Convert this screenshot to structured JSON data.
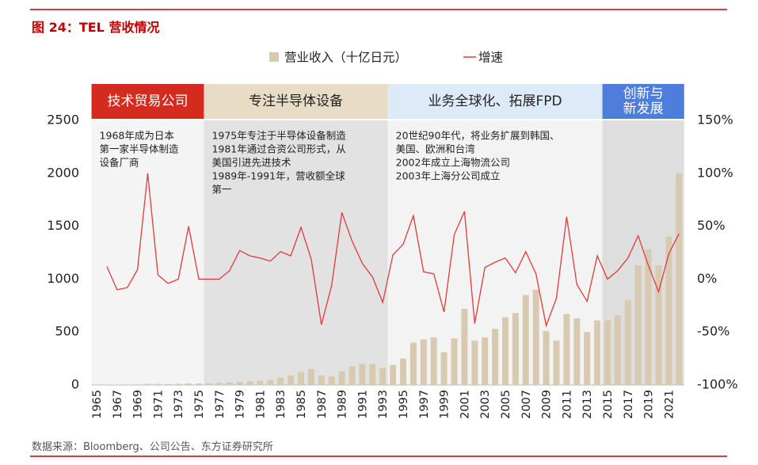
{
  "title": "图 24：TEL 营收情况",
  "source": "数据来源：Bloomberg、公司公告、东方证券研究所",
  "chart_data": {
    "type": "combo",
    "categories": [
      "1965",
      null,
      "1967",
      null,
      "1969",
      null,
      "1971",
      null,
      "1973",
      null,
      "1975",
      null,
      "1977",
      null,
      "1979",
      null,
      "1981",
      null,
      "1983",
      null,
      "1985",
      null,
      "1987",
      null,
      "1989",
      null,
      "1991",
      null,
      "1993",
      null,
      "1995",
      null,
      "1997",
      null,
      "1999",
      null,
      "2001",
      null,
      "2003",
      null,
      "2005",
      null,
      "2007",
      null,
      "2009",
      null,
      "2011",
      null,
      "2013",
      null,
      "2015",
      null,
      "2017",
      null,
      "2019",
      null,
      "2021",
      null
    ],
    "series": [
      {
        "name": "营业收入（十亿日元）",
        "type": "bar",
        "color": "#d8cab0",
        "values": [
          2,
          3,
          3,
          3,
          5,
          10,
          10,
          10,
          12,
          15,
          15,
          15,
          20,
          25,
          30,
          35,
          40,
          50,
          70,
          90,
          125,
          150,
          90,
          80,
          130,
          175,
          200,
          200,
          160,
          190,
          250,
          400,
          430,
          450,
          310,
          440,
          720,
          420,
          450,
          530,
          640,
          680,
          850,
          900,
          510,
          420,
          670,
          630,
          500,
          610,
          610,
          660,
          800,
          1130,
          1280,
          1130,
          1400,
          2000
        ]
      },
      {
        "name": "增速",
        "type": "line",
        "axis": "y2",
        "color": "#e03a3a",
        "values": [
          null,
          12,
          -10,
          -8,
          9,
          100,
          4,
          -4,
          0,
          50,
          0,
          0,
          0,
          8,
          27,
          22,
          20,
          17,
          26,
          22,
          49,
          19,
          -43,
          -6,
          63,
          36,
          15,
          2,
          -22,
          23,
          33,
          60,
          7,
          5,
          -31,
          42,
          64,
          -42,
          11,
          16,
          20,
          6,
          26,
          5,
          -44,
          -18,
          59,
          -5,
          -21,
          22,
          0,
          8,
          20,
          41,
          13,
          -12,
          24,
          43
        ]
      }
    ],
    "ylim": [
      0,
      2500
    ],
    "yticks": [
      0,
      500,
      1000,
      1500,
      2000,
      2500
    ],
    "y2lim": [
      -100,
      150
    ],
    "y2ticks": [
      {
        "value": -100,
        "label": "-100%"
      },
      {
        "value": -50,
        "label": "-50%"
      },
      {
        "value": 0,
        "label": "0%"
      },
      {
        "value": 50,
        "label": "50%"
      },
      {
        "value": 100,
        "label": "100%"
      },
      {
        "value": 150,
        "label": "150%"
      }
    ],
    "phases": [
      {
        "title": [
          "技术贸易公司"
        ],
        "notes": [
          "1968年成为日本",
          "第一家半导体制造",
          "设备厂商"
        ]
      },
      {
        "title": [
          "专注半导体设备"
        ],
        "notes": [
          "1975年专注于半导体设备制造",
          "1981年通过合资公司形式，从",
          "美国引进先进技术",
          "1989年-1991年，营收额全球",
          "第一"
        ]
      },
      {
        "title": [
          "业务全球化、拓展FPD"
        ],
        "notes": [
          "20世纪90年代，将业务扩展到韩国、",
          "美国、欧洲和台湾",
          "2002年成立上海物流公司",
          "2003年上海分公司成立"
        ]
      },
      {
        "title": [
          "创新与",
          "新发展"
        ],
        "notes": []
      }
    ]
  }
}
